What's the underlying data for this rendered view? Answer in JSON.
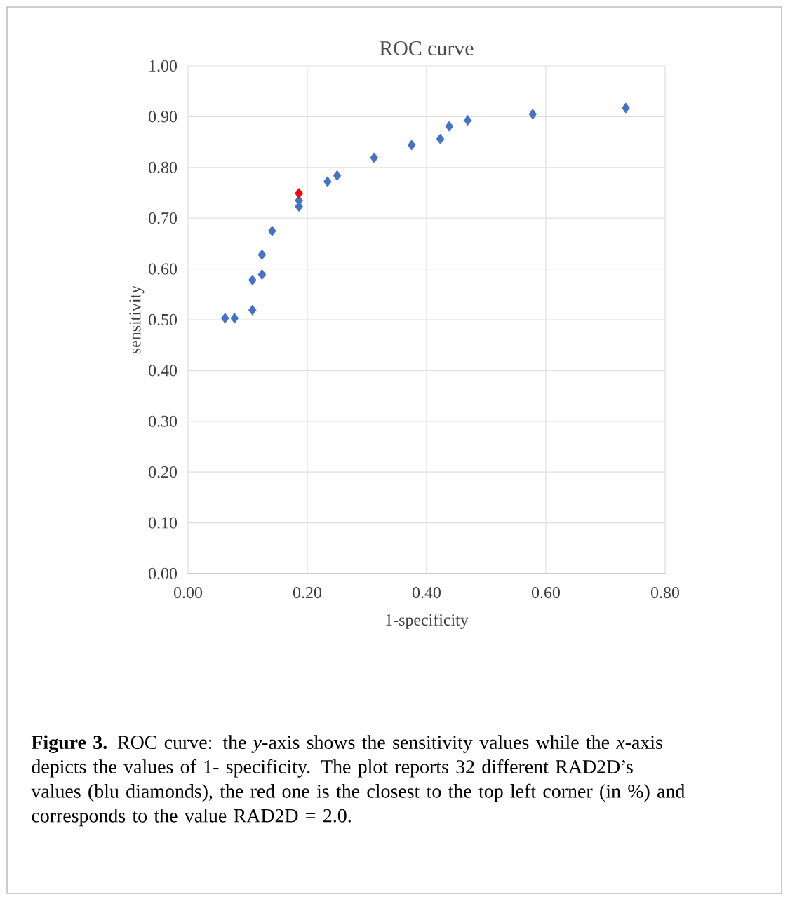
{
  "chart_data": {
    "type": "scatter",
    "title": "ROC curve",
    "xlabel": "1-specificity",
    "ylabel": "sensitivity",
    "series": [
      {
        "color": "#4472c4",
        "x": [
          0.062,
          0.078,
          0.108,
          0.108,
          0.124,
          0.124,
          0.141,
          0.186,
          0.186,
          0.234,
          0.25,
          0.312,
          0.375,
          0.423,
          0.438,
          0.469,
          0.578,
          0.734
        ],
        "values": [
          0.503,
          0.503,
          0.519,
          0.578,
          0.589,
          0.628,
          0.675,
          0.723,
          0.735,
          0.772,
          0.784,
          0.819,
          0.844,
          0.856,
          0.881,
          0.893,
          0.905,
          0.917
        ]
      },
      {
        "color": "#ff0000",
        "x": [
          0.186
        ],
        "values": [
          0.749
        ]
      }
    ],
    "xlim": [
      0,
      0.8
    ],
    "ylim": [
      0,
      1
    ],
    "xticks": [
      {
        "value": 0,
        "label": "0.00"
      },
      {
        "value": 0.2,
        "label": "0.20"
      },
      {
        "value": 0.4,
        "label": "0.40"
      },
      {
        "value": 0.6,
        "label": "0.60"
      },
      {
        "value": 0.8,
        "label": "0.80"
      }
    ],
    "yticks": [
      {
        "value": 0,
        "label": "0.00"
      },
      {
        "value": 0.1,
        "label": "0.10"
      },
      {
        "value": 0.2,
        "label": "0.20"
      },
      {
        "value": 0.3,
        "label": "0.30"
      },
      {
        "value": 0.4,
        "label": "0.40"
      },
      {
        "value": 0.5,
        "label": "0.50"
      },
      {
        "value": 0.6,
        "label": "0.60"
      },
      {
        "value": 0.7,
        "label": "0.70"
      },
      {
        "value": 0.8,
        "label": "0.80"
      },
      {
        "value": 0.9,
        "label": "0.90"
      },
      {
        "value": 1,
        "label": "1.00"
      }
    ],
    "grid": true,
    "marker": "diamond",
    "annotations": [
      "**Figure 3.** ROC curve: the *y*-axis shows the sensitivity values while the *x*-axis depicts the values of 1- specificity. The plot reports 32 different RAD2D’s values (blu diamonds), the red one is the closest to the top left corner (in %) and corresponds to the value RAD2D = 2.0."
    ]
  }
}
